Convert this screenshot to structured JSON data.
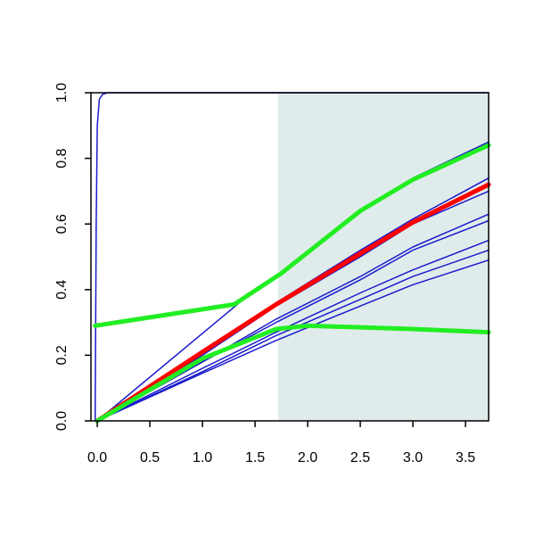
{
  "chart_data": {
    "type": "line",
    "title": "",
    "xlabel": "",
    "ylabel": "",
    "xlim": [
      -0.06,
      3.72
    ],
    "ylim": [
      0.0,
      1.0
    ],
    "xticks": [
      0.0,
      0.5,
      1.0,
      1.5,
      2.0,
      2.5,
      3.0,
      3.5
    ],
    "xtick_labels": [
      "0.0",
      "0.5",
      "1.0",
      "1.5",
      "2.0",
      "2.5",
      "3.0",
      "3.5"
    ],
    "yticks": [
      0.0,
      0.2,
      0.4,
      0.6,
      0.8,
      1.0
    ],
    "ytick_labels": [
      "0.0",
      "0.2",
      "0.4",
      "0.6",
      "0.8",
      "1.0"
    ],
    "grid": false,
    "legend": "none",
    "shaded_region": {
      "x": [
        1.72,
        3.72
      ],
      "color": "#e0ecec"
    },
    "colors": {
      "blue": "#1a1acc",
      "red": "#ff0000",
      "green": "#22ee22",
      "axis": "#000000"
    },
    "series": [
      {
        "color": "#1a1acc",
        "width": 1.5,
        "points": [
          [
            -0.02,
            0.0
          ],
          [
            -0.01,
            0.6
          ],
          [
            0.0,
            0.9
          ],
          [
            0.02,
            0.98
          ],
          [
            0.05,
            0.995
          ],
          [
            0.1,
            1.0
          ],
          [
            3.72,
            1.0
          ]
        ]
      },
      {
        "color": "#1a1acc",
        "width": 1.5,
        "points": [
          [
            0.0,
            0.0
          ],
          [
            1.5,
            0.4
          ],
          [
            1.75,
            0.45
          ],
          [
            2.5,
            0.64
          ],
          [
            3.0,
            0.74
          ],
          [
            3.72,
            0.85
          ]
        ]
      },
      {
        "color": "#1a1acc",
        "width": 1.5,
        "points": [
          [
            0.0,
            0.0
          ],
          [
            1.0,
            0.21
          ],
          [
            1.7,
            0.36
          ],
          [
            2.5,
            0.52
          ],
          [
            3.0,
            0.615
          ],
          [
            3.72,
            0.74
          ]
        ]
      },
      {
        "color": "#1a1acc",
        "width": 1.5,
        "points": [
          [
            0.0,
            0.0
          ],
          [
            1.0,
            0.2
          ],
          [
            1.7,
            0.35
          ],
          [
            2.5,
            0.5
          ],
          [
            3.0,
            0.6
          ],
          [
            3.72,
            0.7
          ]
        ]
      },
      {
        "color": "#1a1acc",
        "width": 1.5,
        "points": [
          [
            0.0,
            0.0
          ],
          [
            1.0,
            0.18
          ],
          [
            1.7,
            0.31
          ],
          [
            2.5,
            0.44
          ],
          [
            3.0,
            0.53
          ],
          [
            3.72,
            0.63
          ]
        ]
      },
      {
        "color": "#1a1acc",
        "width": 1.5,
        "points": [
          [
            0.0,
            0.0
          ],
          [
            1.0,
            0.18
          ],
          [
            1.7,
            0.3
          ],
          [
            2.5,
            0.43
          ],
          [
            3.0,
            0.52
          ],
          [
            3.72,
            0.61
          ]
        ]
      },
      {
        "color": "#1a1acc",
        "width": 1.5,
        "points": [
          [
            0.0,
            0.0
          ],
          [
            1.0,
            0.16
          ],
          [
            1.7,
            0.27
          ],
          [
            2.5,
            0.39
          ],
          [
            3.0,
            0.46
          ],
          [
            3.72,
            0.55
          ]
        ]
      },
      {
        "color": "#1a1acc",
        "width": 1.5,
        "points": [
          [
            0.0,
            0.0
          ],
          [
            1.0,
            0.15
          ],
          [
            1.7,
            0.26
          ],
          [
            2.5,
            0.37
          ],
          [
            3.0,
            0.44
          ],
          [
            3.72,
            0.52
          ]
        ]
      },
      {
        "color": "#1a1acc",
        "width": 1.5,
        "points": [
          [
            0.0,
            0.0
          ],
          [
            1.0,
            0.145
          ],
          [
            1.7,
            0.245
          ],
          [
            2.5,
            0.35
          ],
          [
            3.0,
            0.415
          ],
          [
            3.72,
            0.49
          ]
        ]
      },
      {
        "color": "#ff0000",
        "width": 5,
        "points": [
          [
            0.0,
            0.0
          ],
          [
            1.0,
            0.21
          ],
          [
            1.7,
            0.355
          ],
          [
            2.5,
            0.51
          ],
          [
            3.0,
            0.605
          ],
          [
            3.72,
            0.72
          ]
        ]
      },
      {
        "color": "#22ee22",
        "width": 5,
        "points": [
          [
            0.0,
            0.0
          ],
          [
            1.0,
            0.19
          ],
          [
            1.7,
            0.28
          ],
          [
            2.0,
            0.29
          ],
          [
            3.0,
            0.28
          ],
          [
            3.72,
            0.27
          ]
        ]
      },
      {
        "color": "#22ee22",
        "width": 5,
        "points": [
          [
            -0.02,
            0.29
          ],
          [
            1.3,
            0.355
          ],
          [
            1.75,
            0.45
          ],
          [
            2.5,
            0.64
          ],
          [
            3.0,
            0.735
          ],
          [
            3.72,
            0.84
          ]
        ]
      }
    ]
  }
}
